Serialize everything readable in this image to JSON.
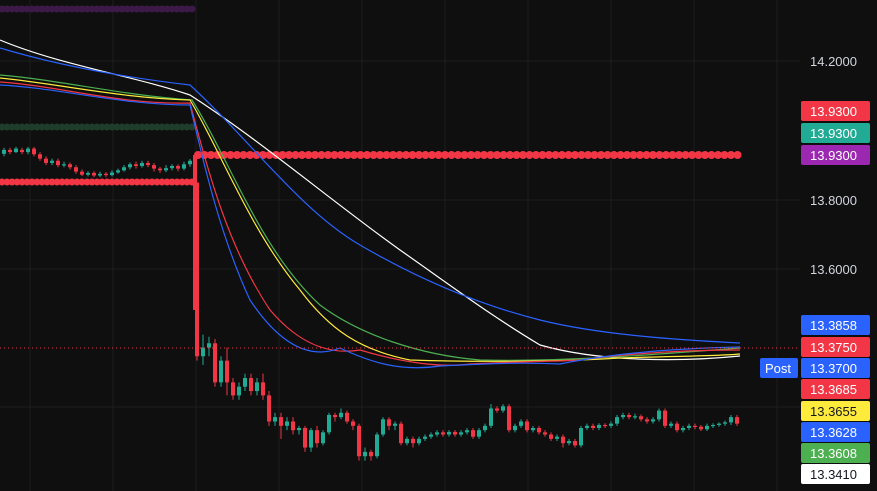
{
  "chart_data": {
    "type": "candlestick",
    "y_axis": {
      "ticks": [
        "14.2000",
        "13.8000",
        "13.6000"
      ],
      "tick_values": [
        14.2,
        13.8,
        13.6
      ],
      "ylim": [
        13.22,
        14.35
      ]
    },
    "price_labels": [
      {
        "text": "13.9300",
        "value": 13.93,
        "color": "#f23645",
        "text_color": "#ffffff"
      },
      {
        "text": "13.9300",
        "value": 13.93,
        "color": "#22ab94",
        "text_color": "#ffffff"
      },
      {
        "text": "13.9300",
        "value": 13.93,
        "color": "#9c27b0",
        "text_color": "#ffffff"
      },
      {
        "text": "13.3858",
        "value": 13.3858,
        "color": "#2962ff",
        "text_color": "#ffffff"
      },
      {
        "text": "13.3750",
        "value": 13.375,
        "color": "#f23645",
        "text_color": "#ffffff"
      },
      {
        "text": "13.3700",
        "value": 13.37,
        "color": "#2962ff",
        "text_color": "#ffffff"
      },
      {
        "text": "13.3685",
        "value": 13.3685,
        "color": "#f23645",
        "text_color": "#ffffff"
      },
      {
        "text": "13.3655",
        "value": 13.3655,
        "color": "#ffeb3b",
        "text_color": "#131722"
      },
      {
        "text": "13.3628",
        "value": 13.3628,
        "color": "#2962ff",
        "text_color": "#ffffff"
      },
      {
        "text": "13.3608",
        "value": 13.3608,
        "color": "#4caf50",
        "text_color": "#ffffff"
      },
      {
        "text": "13.3410",
        "value": 13.341,
        "color": "#ffffff",
        "text_color": "#131722"
      }
    ],
    "post_label": "Post",
    "candle_colors": {
      "up": "#22ab94",
      "down": "#f23645"
    },
    "moving_average_colors": [
      "#ffffff",
      "#2962ff",
      "#4caf50",
      "#ffeb3b",
      "#f23645",
      "#2962ff"
    ]
  }
}
